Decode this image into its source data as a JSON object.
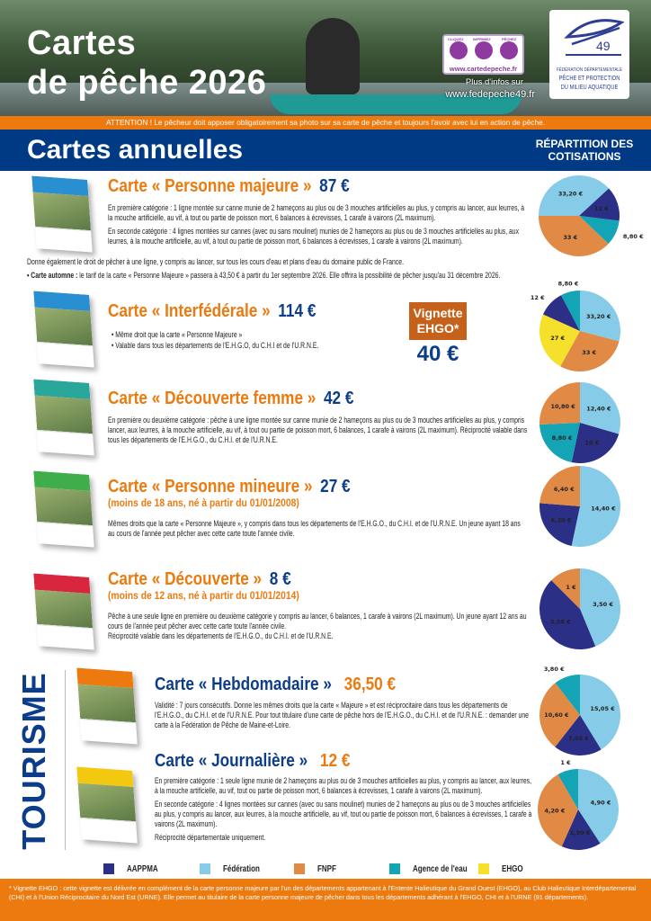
{
  "header": {
    "title_line1": "Cartes",
    "title_line2": "de pêche 2026",
    "cartedepeche": {
      "steps": [
        "CLIQUEZ",
        "IMPRIMEZ",
        "PÊCHEZ"
      ],
      "url": "www.cartedepeche.fr"
    },
    "info_label": "Plus d'infos sur",
    "info_url": "www.fedepeche49.fr",
    "federation_logo": {
      "number": "49",
      "line1": "FÉDÉRATION DÉPARTEMENTALE",
      "line2": "PÊCHE ET PROTECTION",
      "line3": "DU MILIEU AQUATIQUE"
    }
  },
  "attention": "ATTENTION ! Le pêcheur doit apposer obligatoirement sa photo sur sa carte de pêche et toujours l'avoir avec lui en action de pêche.",
  "section_title": "Cartes annuelles",
  "repartition_title": "RÉPARTITION DES COTISATIONS",
  "cards": [
    {
      "title": "Carte « Personne majeure »",
      "price": "87 €",
      "paragraphs": [
        "En première catégorie : 1 ligne montée sur canne munie de 2 hameçons au plus ou de 3 mouches artificielles au plus, y compris au lancer, aux leurres, à la mouche artificielle, au vif, à tout ou partie de poisson mort, 6 balances à écrevisses, 1 carafe à vairons (2L maximum).",
        "En seconde catégorie : 4 lignes montées sur cannes (avec ou sans moulinet) munies de 2 hameçons au plus ou de 3 mouches artificielles au plus, aux leurres, à la mouche artificielle, au vif, à tout ou partie de poisson mort, 6 balances à écrevisses, 1 carafe à vairons (2L maximum)."
      ],
      "note1": "Donne également le droit de pêcher à une ligne, y compris au lancer, sur tous les cours d'eau et plans d'eau du domaine public de France.",
      "note2_label": "• Carte automne :",
      "note2": " le tarif de la carte « Personne Majeure » passera à 43,50 € à partir du 1er septembre 2026. Elle offrira la possibilité de pêcher jusqu'au 31 décembre 2026."
    },
    {
      "title": "Carte « Interfédérale »",
      "price": "114 €",
      "bullets": [
        "• Même droit que la carte « Personne Majeure »",
        "• Valable dans tous les départements de l'E.H.G.O, du C.H.I et de l'U.R.N.E."
      ],
      "vignette_label": "Vignette EHGO*",
      "vignette_price": "40 €"
    },
    {
      "title": "Carte « Découverte femme »",
      "price": "42 €",
      "paragraphs": [
        "En première ou deuxième catégorie : pêche à une ligne montée sur canne munie de 2 hameçons au plus ou de 3 mouches artificielles au plus, y compris lancer, aux leurres, à la mouche artificielle, au vif, à tout ou partie de poisson mort, 6 balances, 1 carafe à vairons (2L maximum). Réciprocité valable dans tous les départements de l'E.H.G.O., du C.H.I. et de l'U.R.N.E."
      ]
    },
    {
      "title": "Carte « Personne mineure »",
      "price": "27 €",
      "subtitle": "(moins de 18 ans, né à partir du 01/01/2008)",
      "paragraphs": [
        "Mêmes droits que la carte « Personne Majeure », y compris dans tous les départements de l'E.H.G.O., du C.H.I. et de l'U.R.N.E. Un jeune ayant 18 ans au cours de l'année peut pêcher avec cette carte toute l'année civile."
      ]
    },
    {
      "title": "Carte « Découverte »",
      "price": "8 €",
      "subtitle": "(moins de 12 ans, né à partir du 01/01/2014)",
      "paragraphs": [
        "Pêche à une seule ligne en première ou deuxième catégorie y compris au lancer, 6 balances, 1 carafe à vairons (2L maximum). Un jeune ayant 12 ans au cours de l'année peut pêcher avec cette carte toute l'année civile.",
        "Réciprocité valable dans les départements de l'E.H.G.O., du C.H.I. et de l'U.R.N.E."
      ]
    }
  ],
  "tourisme": {
    "label": "TOURISME",
    "cards": [
      {
        "title": "Carte « Hebdomadaire »",
        "price": "36,50 €",
        "paragraphs": [
          "Validité : 7 jours consécutifs. Donne les mêmes droits que la carte « Majeure » et est réciprocitaire dans tous les départements de l'E.H.G.O., du C.H.I. et de l'U.R.N.E. Pour tout titulaire d'une carte de pêche hors de l'E.H.G.O., du C.H.I. et de l'U.R.N.E. : demander une carte à la Fédération de Pêche de Maine-et-Loire."
        ]
      },
      {
        "title": "Carte « Journalière »",
        "price": "12 €",
        "paragraphs": [
          "En première catégorie : 1 seule ligne munie de 2 hameçons au plus ou de 3 mouches artificielles au plus, y compris au lancer, aux leurres, à la mouche artificielle, au vif, tout ou partie de poisson mort, 6 balances à écrevisses, 1 carafe à vairons (2L maximum).",
          "En seconde catégorie : 4 lignes montées sur cannes (avec ou sans moulinet) munies de 2 hameçons au plus ou de 3 mouches artificielles au plus, y compris au lancer, aux leurres, à la mouche artificielle, au vif, tout ou partie de poisson mort, 6 balances à écrevisses, 1 carafe à vairons (2L maximum).",
          "Réciprocité départementale uniquement."
        ]
      }
    ]
  },
  "legend": [
    {
      "label": "AAPPMA",
      "color": "#2b2f86"
    },
    {
      "label": "Fédération",
      "color": "#86cce8"
    },
    {
      "label": "FNPF",
      "color": "#e08a45"
    },
    {
      "label": "Agence de l'eau",
      "color": "#13a5b5"
    },
    {
      "label": "EHGO",
      "color": "#f5e12b"
    }
  ],
  "footnote": "* Vignette EHGO : cette vignette est délivrée en complément de la carte personne majeure par l'un des départements appartenant à l'Entente Halieutique du Grand Ouest (EHGO), au Club Halieutique Interdépartemental (CHI) et à l'Union Réciprocitaire du Nord Est (URNE). Elle permet au titulaire de la carte personne majeure de pêcher dans tous les départements adhérant à l'EHGO, CHI et à l'URNE (91 départements).",
  "chart_data": [
    {
      "type": "pie",
      "card": "Personne majeure",
      "slices": [
        {
          "series": "Fédération",
          "value": 33.2,
          "label": "33,20 €"
        },
        {
          "series": "AAPPMA",
          "value": 12,
          "label": "12 €"
        },
        {
          "series": "Agence de l'eau",
          "value": 8.8,
          "label": "8,80 €"
        },
        {
          "series": "FNPF",
          "value": 33,
          "label": "33 €"
        }
      ]
    },
    {
      "type": "pie",
      "card": "Interfédérale",
      "slices": [
        {
          "series": "Fédération",
          "value": 33.2,
          "label": "33,20 €"
        },
        {
          "series": "FNPF",
          "value": 33,
          "label": "33 €"
        },
        {
          "series": "EHGO",
          "value": 27,
          "label": "27 €"
        },
        {
          "series": "AAPPMA",
          "value": 12,
          "label": "12 €"
        },
        {
          "series": "Agence de l'eau",
          "value": 8.8,
          "label": "8,80 €"
        }
      ]
    },
    {
      "type": "pie",
      "card": "Découverte femme",
      "slices": [
        {
          "series": "Fédération",
          "value": 12.4,
          "label": "12,40 €"
        },
        {
          "series": "AAPPMA",
          "value": 10,
          "label": "10 €"
        },
        {
          "series": "Agence de l'eau",
          "value": 8.8,
          "label": "8,80 €"
        },
        {
          "series": "FNPF",
          "value": 10.8,
          "label": "10,80 €"
        }
      ]
    },
    {
      "type": "pie",
      "card": "Personne mineure",
      "slices": [
        {
          "series": "Fédération",
          "value": 14.4,
          "label": "14,40 €"
        },
        {
          "series": "AAPPMA",
          "value": 6.2,
          "label": "6,20 €"
        },
        {
          "series": "FNPF",
          "value": 6.4,
          "label": "6,40 €"
        }
      ]
    },
    {
      "type": "pie",
      "card": "Découverte",
      "slices": [
        {
          "series": "Fédération",
          "value": 3.5,
          "label": "3,50 €"
        },
        {
          "series": "AAPPMA",
          "value": 3.5,
          "label": "3,50 €"
        },
        {
          "series": "FNPF",
          "value": 1,
          "label": "1 €"
        }
      ]
    },
    {
      "type": "pie",
      "card": "Hebdomadaire",
      "slices": [
        {
          "series": "Fédération",
          "value": 15.05,
          "label": "15,05 €"
        },
        {
          "series": "AAPPMA",
          "value": 7.05,
          "label": "7,05 €"
        },
        {
          "series": "FNPF",
          "value": 10.6,
          "label": "10,60 €"
        },
        {
          "series": "Agence de l'eau",
          "value": 3.8,
          "label": "3,80 €"
        }
      ]
    },
    {
      "type": "pie",
      "card": "Journalière",
      "slices": [
        {
          "series": "Fédération",
          "value": 4.9,
          "label": "4,90 €"
        },
        {
          "series": "AAPPMA",
          "value": 1.9,
          "label": "1,90 €"
        },
        {
          "series": "FNPF",
          "value": 4.2,
          "label": "4,20 €"
        },
        {
          "series": "Agence de l'eau",
          "value": 1,
          "label": "1 €"
        }
      ]
    }
  ]
}
